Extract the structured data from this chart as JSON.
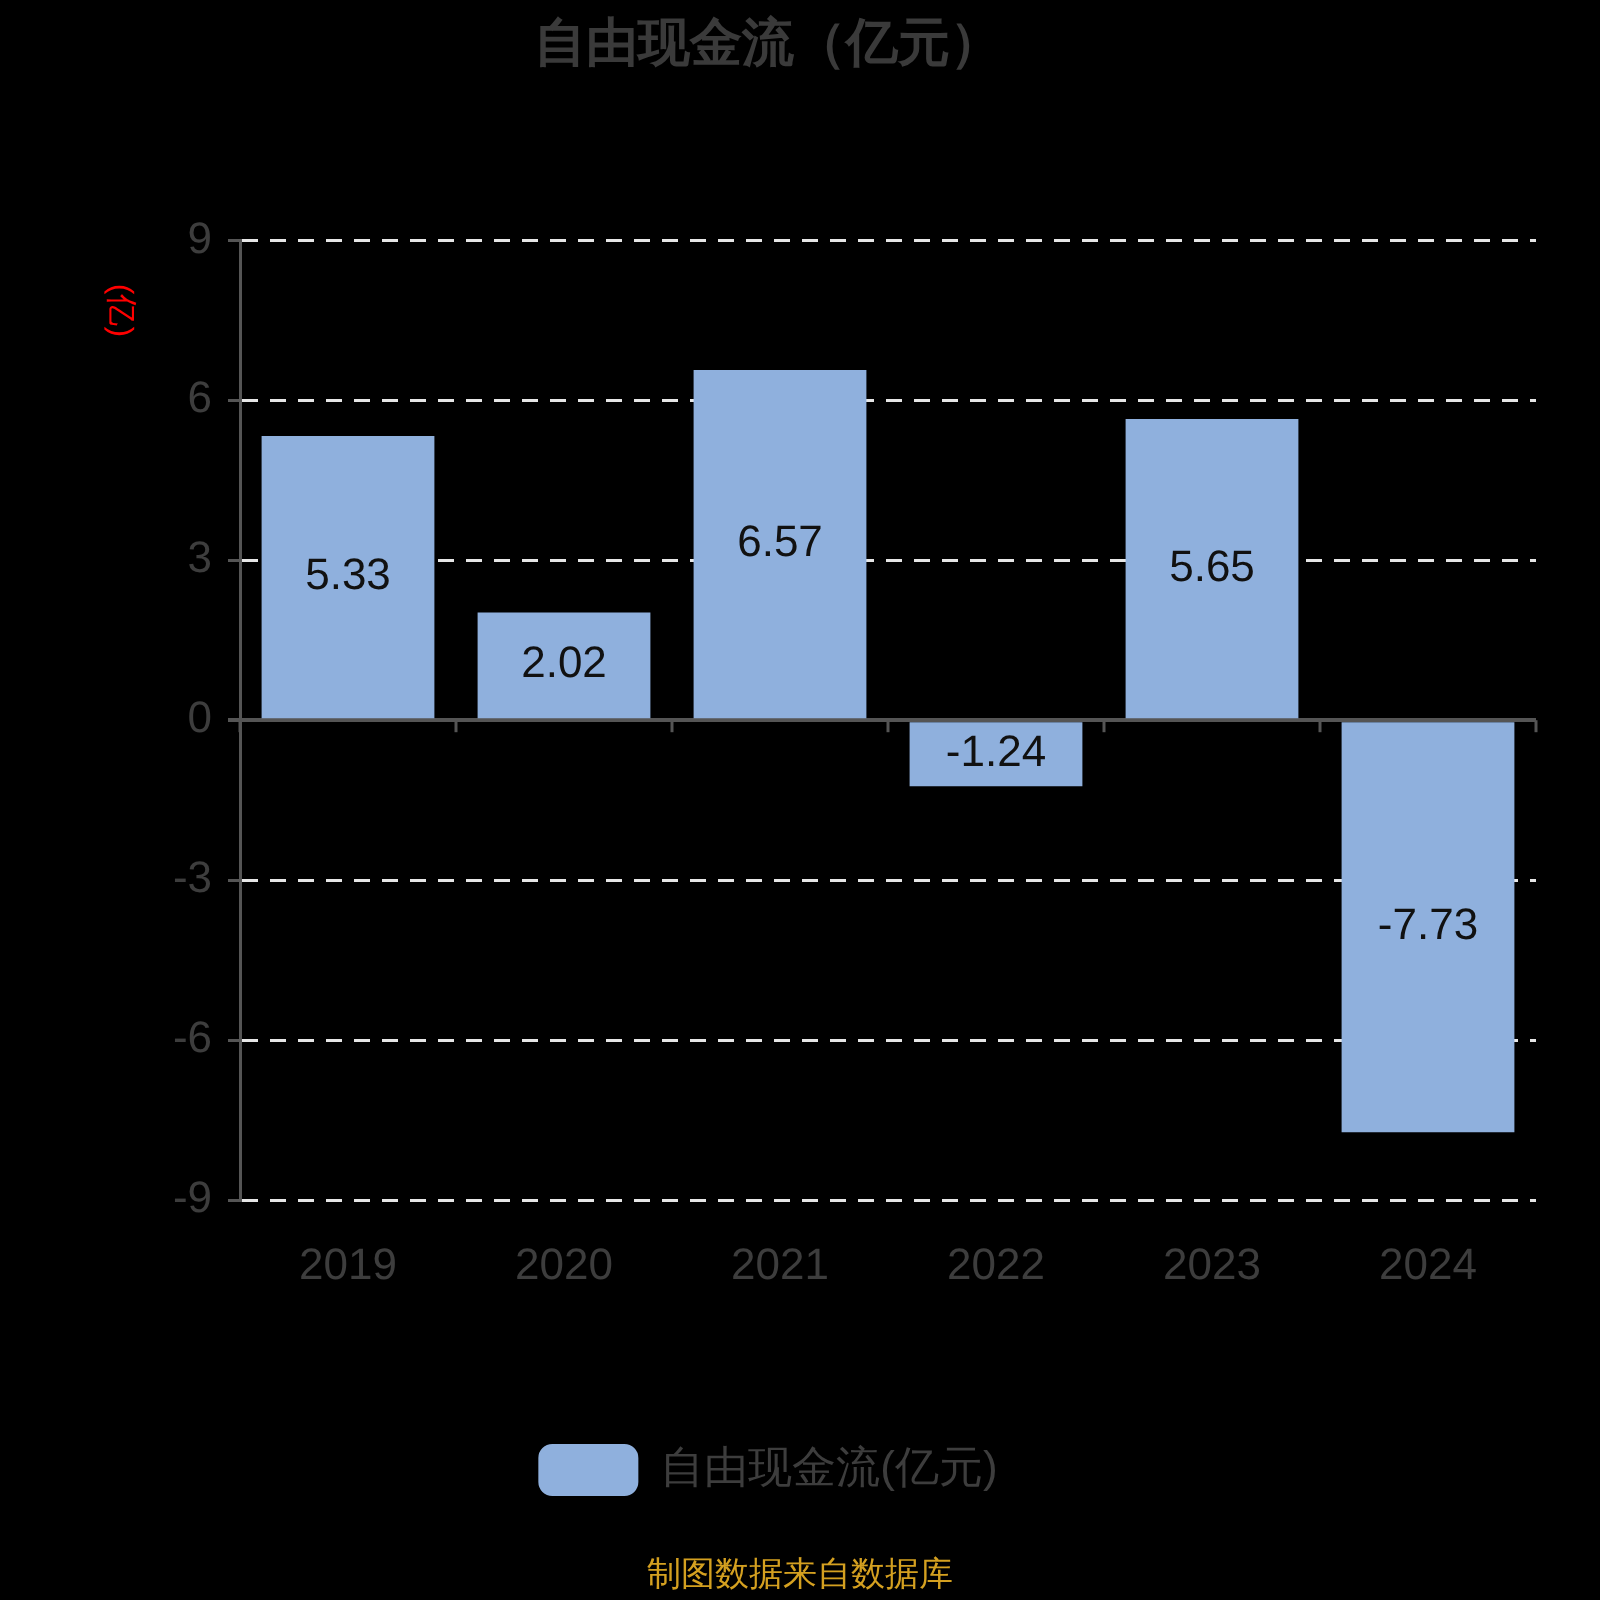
{
  "chart_data": {
    "type": "bar",
    "title": "自由现金流（亿元）",
    "ylabel": "(亿)",
    "categories": [
      "2019",
      "2020",
      "2021",
      "2022",
      "2023",
      "2024"
    ],
    "series": [
      {
        "name": "自由现金流(亿元)",
        "color": "#8fb0dd",
        "values": [
          5.33,
          2.02,
          6.57,
          -1.24,
          5.65,
          -7.73
        ]
      }
    ],
    "ylim": [
      -9,
      9
    ],
    "yticks": [
      -9,
      -6,
      -3,
      0,
      3,
      6,
      9
    ],
    "grid": "y",
    "legend": "bottom",
    "data_labels": true,
    "annotations": [
      "制图数据来自数据库"
    ]
  }
}
